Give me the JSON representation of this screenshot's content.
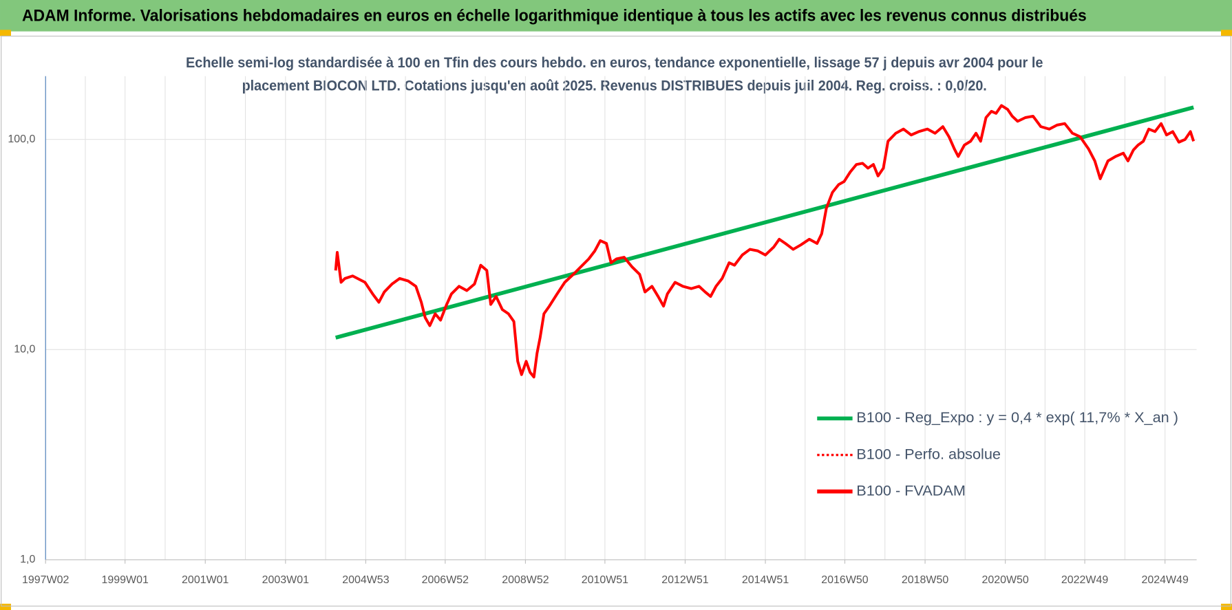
{
  "header": {
    "title": "ADAM Informe. Valorisations hebdomadaires en euros en échelle logarithmique identique à tous les actifs avec les revenus connus distribués"
  },
  "chart_data": {
    "type": "line",
    "log_scale": true,
    "grid": true,
    "legend": "lower right",
    "subtitle": [
      "Echelle semi-log standardisée à 100 en Tfin des cours hebdo. en euros, tendance exponentielle, lissage 57 j depuis avr 2004 pour le",
      "placement BIOCON LTD. Cotations jusqu'en août 2025. Revenus DISTRIBUES depuis juil 2004. Reg. croiss. : 0,0/20."
    ],
    "xlim": [
      "1997W02",
      "2025W38"
    ],
    "xticks": [
      "1997W02",
      "1999W01",
      "2001W01",
      "2003W01",
      "2004W53",
      "2006W52",
      "2008W52",
      "2010W51",
      "2012W51",
      "2014W51",
      "2016W50",
      "2018W50",
      "2020W50",
      "2022W49",
      "2024W49"
    ],
    "ylim": [
      1,
      200
    ],
    "yticks": [
      {
        "value": 1,
        "label": "1,0"
      },
      {
        "value": 10,
        "label": "10,0"
      },
      {
        "value": 100,
        "label": "100,0"
      }
    ],
    "series": [
      {
        "name": "B100 - Reg_Expo : y = 0,4 * exp( 11,7% *  X_an )",
        "color": "#00b050",
        "dash": "solid",
        "x": [
          "2004W14",
          "2025W34"
        ],
        "values": [
          11.4,
          142
        ]
      },
      {
        "name": "B100 - Perfo. absolue",
        "color": "#ff0000",
        "dash": "dotted"
      },
      {
        "name": "B100 - FVADAM",
        "color": "#ff0000",
        "dash": "solid",
        "x": [
          "2004W14",
          "2004W16",
          "2004W21",
          "2004W26",
          "2004W36",
          "2004W52",
          "2005W10",
          "2005W18",
          "2005W25",
          "2005W35",
          "2005W45",
          "2006W04",
          "2006W14",
          "2006W21",
          "2006W26",
          "2006W32",
          "2006W39",
          "2006W46",
          "2007W01",
          "2007W08",
          "2007W18",
          "2007W28",
          "2007W38",
          "2007W46",
          "2008W02",
          "2008W07",
          "2008W14",
          "2008W22",
          "2008W30",
          "2008W37",
          "2008W42",
          "2008W47",
          "2009W01",
          "2009W06",
          "2009W11",
          "2009W15",
          "2009W19",
          "2009W24",
          "2009W31",
          "2009W41",
          "2009W51",
          "2010W10",
          "2010W20",
          "2010W30",
          "2010W38",
          "2010W45",
          "2011W01",
          "2011W07",
          "2011W14",
          "2011W24",
          "2011W34",
          "2011W44",
          "2011W51",
          "2012W08",
          "2012W16",
          "2012W23",
          "2012W28",
          "2012W38",
          "2012W48",
          "2013W07",
          "2013W17",
          "2013W25",
          "2013W32",
          "2013W39",
          "2013W47",
          "2014W04",
          "2014W11",
          "2014W21",
          "2014W31",
          "2014W41",
          "2014W51",
          "2015W10",
          "2015W17",
          "2015W25",
          "2015W35",
          "2015W45",
          "2016W04",
          "2016W14",
          "2016W20",
          "2016W26",
          "2016W34",
          "2016W42",
          "2016W49",
          "2017W05",
          "2017W13",
          "2017W21",
          "2017W28",
          "2017W35",
          "2017W41",
          "2017W48",
          "2018W02",
          "2018W12",
          "2018W22",
          "2018W32",
          "2018W42",
          "2019W01",
          "2019W11",
          "2019W21",
          "2019W29",
          "2019W36",
          "2019W41",
          "2019W49",
          "2020W05",
          "2020W12",
          "2020W18",
          "2020W25",
          "2020W32",
          "2020W38",
          "2020W45",
          "2021W01",
          "2021W07",
          "2021W14",
          "2021W24",
          "2021W34",
          "2021W44",
          "2022W03",
          "2022W13",
          "2022W23",
          "2022W33",
          "2022W43",
          "2023W02",
          "2023W10",
          "2023W17",
          "2023W27",
          "2023W37",
          "2023W47",
          "2024W01",
          "2024W08",
          "2024W14",
          "2024W21",
          "2024W28",
          "2024W36",
          "2024W44",
          "2024W51",
          "2025W07",
          "2025W15",
          "2025W23",
          "2025W30",
          "2025W34"
        ],
        "values": [
          23.8,
          29,
          20.9,
          21.8,
          22.4,
          20.9,
          18.4,
          16.8,
          18.8,
          20.5,
          21.8,
          21.2,
          20,
          16.8,
          14.2,
          13,
          14.8,
          13.8,
          16.1,
          18.4,
          20,
          19.1,
          20.5,
          25.2,
          23.8,
          16.4,
          17.9,
          15.5,
          14.8,
          13.6,
          8.8,
          7.6,
          8.8,
          7.8,
          7.4,
          9.6,
          11.4,
          14.8,
          16.1,
          18.4,
          20.9,
          22.8,
          24.8,
          27,
          29.5,
          33,
          32,
          25.9,
          27,
          27.5,
          24.8,
          22.8,
          18.8,
          20,
          17.9,
          16.1,
          18.4,
          20.9,
          20,
          19.5,
          20,
          18.8,
          17.9,
          20,
          21.8,
          25.9,
          25.2,
          28.2,
          30,
          29.5,
          28.2,
          30.8,
          33.5,
          32,
          30,
          31.5,
          33.5,
          32,
          35.6,
          47,
          56,
          61,
          63,
          70,
          76,
          77,
          73,
          76,
          67,
          73,
          98,
          107,
          112,
          105,
          109,
          112,
          107,
          115,
          103,
          90,
          83,
          94,
          98,
          107,
          98,
          127,
          136,
          133,
          145,
          139,
          129,
          122,
          127,
          129,
          115,
          112,
          117,
          119,
          107,
          103,
          90,
          79,
          65,
          79,
          83,
          86,
          79,
          89,
          94,
          98,
          112,
          109,
          119,
          105,
          109,
          97,
          100,
          109,
          98
        ]
      }
    ]
  }
}
